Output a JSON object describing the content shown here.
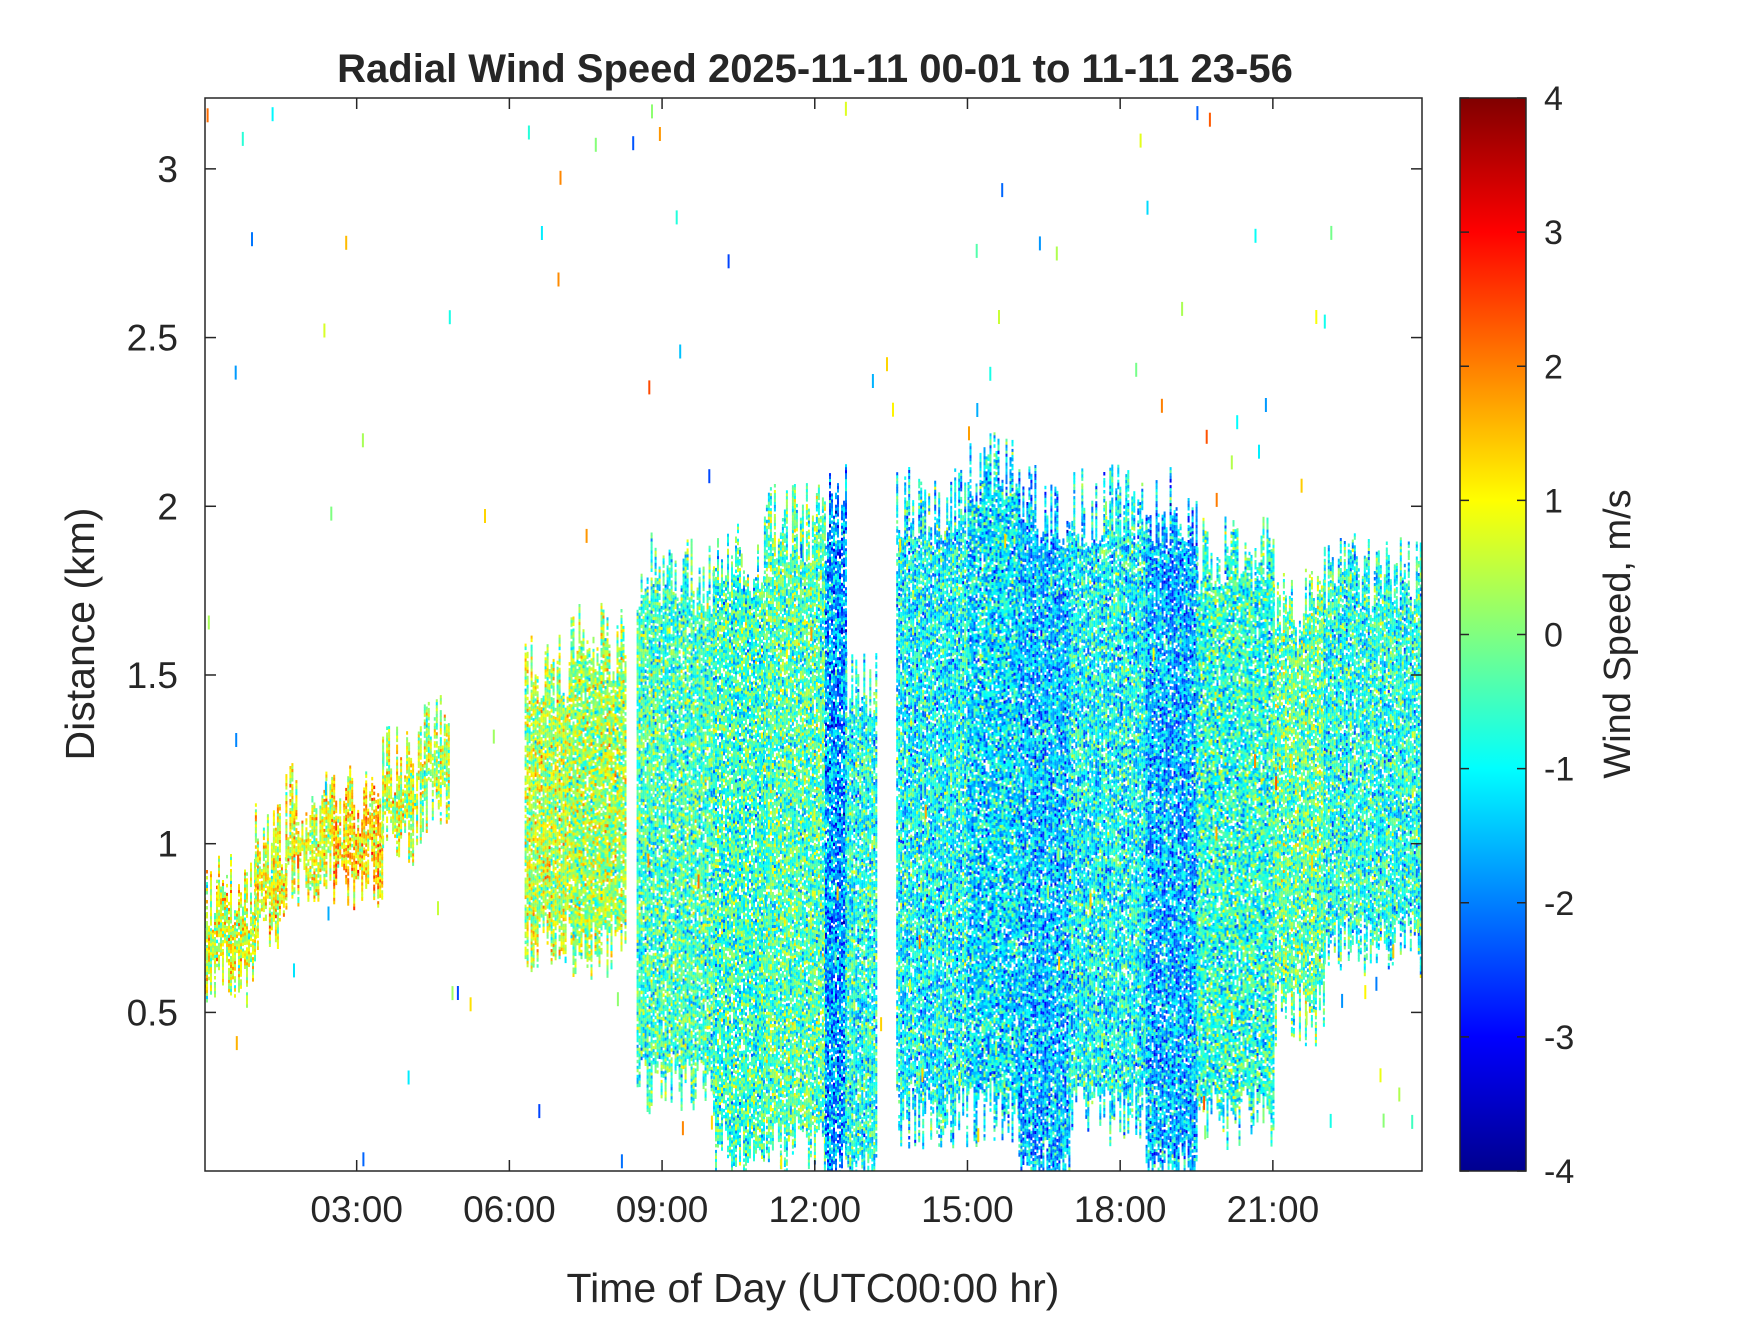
{
  "chart_data": {
    "type": "heatmap",
    "title": "Radial Wind Speed 2025-11-11 00-01 to 11-11 23-56",
    "xlabel": "Time of Day (UTC00:00 hr)",
    "ylabel": "Distance (km)",
    "xlim_hours": [
      0.02,
      23.93
    ],
    "ylim_km": [
      0.03,
      3.21
    ],
    "x_ticks": [
      {
        "hours": 3,
        "label": "03:00"
      },
      {
        "hours": 6,
        "label": "06:00"
      },
      {
        "hours": 9,
        "label": "09:00"
      },
      {
        "hours": 12,
        "label": "12:00"
      },
      {
        "hours": 15,
        "label": "15:00"
      },
      {
        "hours": 18,
        "label": "18:00"
      },
      {
        "hours": 21,
        "label": "21:00"
      }
    ],
    "y_ticks": [
      {
        "km": 0.5,
        "label": "0.5"
      },
      {
        "km": 1,
        "label": "1"
      },
      {
        "km": 1.5,
        "label": "1.5"
      },
      {
        "km": 2,
        "label": "2"
      },
      {
        "km": 2.5,
        "label": "2.5"
      },
      {
        "km": 3,
        "label": "3"
      }
    ],
    "colorbar": {
      "label": "Wind Speed, m/s",
      "range": [
        -4,
        4
      ],
      "colormap": "jet",
      "ticks": [
        {
          "value": 4,
          "label": "4"
        },
        {
          "value": 3,
          "label": "3"
        },
        {
          "value": 2,
          "label": "2"
        },
        {
          "value": 1,
          "label": "1"
        },
        {
          "value": 0,
          "label": "0"
        },
        {
          "value": -1,
          "label": "-1"
        },
        {
          "value": -2,
          "label": "-2"
        },
        {
          "value": -3,
          "label": "-3"
        },
        {
          "value": -4,
          "label": "-4"
        }
      ]
    },
    "grid": false,
    "echo_regions": [
      {
        "start_h": 0.0,
        "end_h": 1.0,
        "bottom_km": 0.6,
        "top_km": 0.85,
        "mean_ms": 0.6
      },
      {
        "start_h": 1.0,
        "end_h": 1.6,
        "bottom_km": 0.75,
        "top_km": 1.0,
        "mean_ms": 0.8
      },
      {
        "start_h": 1.6,
        "end_h": 2.5,
        "bottom_km": 0.9,
        "top_km": 1.12,
        "mean_ms": 0.7
      },
      {
        "start_h": 2.5,
        "end_h": 3.5,
        "bottom_km": 0.9,
        "top_km": 1.12,
        "mean_ms": 1.2
      },
      {
        "start_h": 3.5,
        "end_h": 4.2,
        "bottom_km": 1.0,
        "top_km": 1.25,
        "mean_ms": 0.5
      },
      {
        "start_h": 4.2,
        "end_h": 4.8,
        "bottom_km": 1.1,
        "top_km": 1.32,
        "mean_ms": 0.3
      },
      {
        "start_h": 6.3,
        "end_h": 7.2,
        "bottom_km": 0.7,
        "top_km": 1.5,
        "mean_ms": 0.4
      },
      {
        "start_h": 7.2,
        "end_h": 8.3,
        "bottom_km": 0.7,
        "top_km": 1.6,
        "mean_ms": 0.2
      },
      {
        "start_h": 8.5,
        "end_h": 10.0,
        "bottom_km": 0.3,
        "top_km": 1.8,
        "mean_ms": -0.5
      },
      {
        "start_h": 10.0,
        "end_h": 11.0,
        "bottom_km": 0.1,
        "top_km": 1.85,
        "mean_ms": -0.6
      },
      {
        "start_h": 11.0,
        "end_h": 12.2,
        "bottom_km": 0.1,
        "top_km": 1.95,
        "mean_ms": -0.4
      },
      {
        "start_h": 12.2,
        "end_h": 12.6,
        "bottom_km": 0.03,
        "top_km": 2.0,
        "mean_ms": -1.8
      },
      {
        "start_h": 12.6,
        "end_h": 13.2,
        "bottom_km": 0.03,
        "top_km": 1.5,
        "mean_ms": -0.8
      },
      {
        "start_h": 13.6,
        "end_h": 15.0,
        "bottom_km": 0.2,
        "top_km": 2.0,
        "mean_ms": -1.0
      },
      {
        "start_h": 15.0,
        "end_h": 16.0,
        "bottom_km": 0.2,
        "top_km": 2.1,
        "mean_ms": -1.2
      },
      {
        "start_h": 16.0,
        "end_h": 17.0,
        "bottom_km": 0.03,
        "top_km": 2.0,
        "mean_ms": -1.5
      },
      {
        "start_h": 17.0,
        "end_h": 18.5,
        "bottom_km": 0.2,
        "top_km": 2.0,
        "mean_ms": -1.0
      },
      {
        "start_h": 18.5,
        "end_h": 19.5,
        "bottom_km": 0.03,
        "top_km": 2.0,
        "mean_ms": -1.6
      },
      {
        "start_h": 19.5,
        "end_h": 21.0,
        "bottom_km": 0.2,
        "top_km": 1.85,
        "mean_ms": -0.7
      },
      {
        "start_h": 21.0,
        "end_h": 22.0,
        "bottom_km": 0.5,
        "top_km": 1.7,
        "mean_ms": -0.3
      },
      {
        "start_h": 22.0,
        "end_h": 23.93,
        "bottom_km": 0.7,
        "top_km": 1.8,
        "mean_ms": -0.8
      }
    ]
  }
}
